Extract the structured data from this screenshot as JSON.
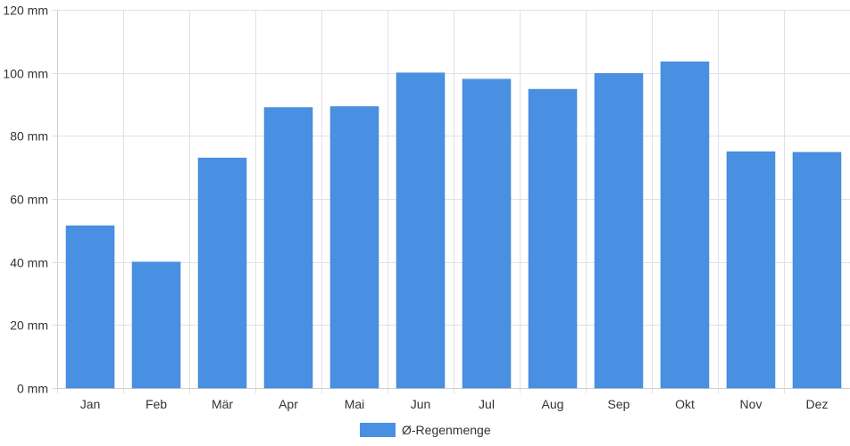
{
  "chart_data": {
    "type": "bar",
    "categories": [
      "Jan",
      "Feb",
      "Mär",
      "Apr",
      "Mai",
      "Jun",
      "Jul",
      "Aug",
      "Sep",
      "Okt",
      "Nov",
      "Dez"
    ],
    "series": [
      {
        "name": "Ø-Regenmenge",
        "values": [
          51.5,
          40,
          73,
          89,
          89.3,
          100,
          98,
          94.8,
          99.8,
          103.5,
          75,
          74.8
        ],
        "color": "#4a90e2"
      }
    ],
    "ylim": [
      0,
      120
    ],
    "yticks": [
      0,
      20,
      40,
      60,
      80,
      100,
      120
    ],
    "y_unit": "mm",
    "grid": true,
    "legend_position": "bottom"
  }
}
